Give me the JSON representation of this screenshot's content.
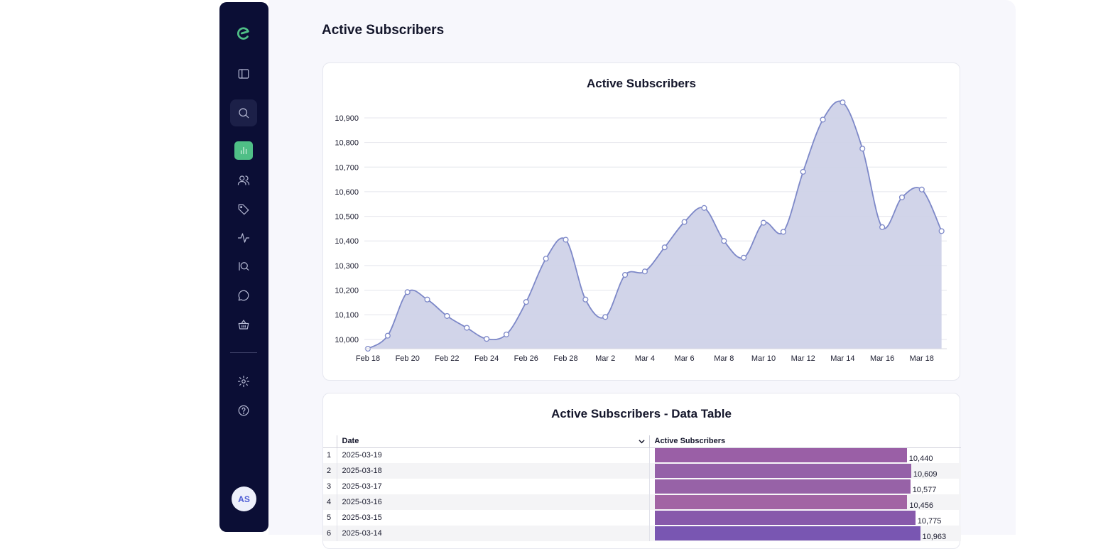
{
  "page": {
    "title": "Active Subscribers"
  },
  "sidebar": {
    "items": [
      {
        "id": "logo",
        "icon": "logo-icon"
      },
      {
        "id": "toggle",
        "icon": "sidebar-toggle-icon"
      },
      {
        "id": "search",
        "icon": "search-icon"
      },
      {
        "id": "analytics",
        "icon": "bar-chart-icon",
        "active": true
      },
      {
        "id": "users",
        "icon": "users-icon"
      },
      {
        "id": "tags",
        "icon": "tag-icon"
      },
      {
        "id": "activity",
        "icon": "activity-icon"
      },
      {
        "id": "insights",
        "icon": "iq-search-icon"
      },
      {
        "id": "chat",
        "icon": "chat-icon"
      },
      {
        "id": "shop",
        "icon": "basket-icon"
      },
      {
        "id": "settings",
        "icon": "gear-icon"
      },
      {
        "id": "help",
        "icon": "help-icon"
      }
    ],
    "avatar": "AS"
  },
  "colors": {
    "sidebar": "#0b0e35",
    "accent": "#4fbf86",
    "line": "#7d88c8",
    "area": "#cfd2e8"
  },
  "chart_data": {
    "type": "area",
    "title": "Active Subscribers",
    "x": [
      "2025-02-18",
      "2025-02-19",
      "2025-02-20",
      "2025-02-21",
      "2025-02-22",
      "2025-02-23",
      "2025-02-24",
      "2025-02-25",
      "2025-02-26",
      "2025-02-27",
      "2025-02-28",
      "2025-03-01",
      "2025-03-02",
      "2025-03-03",
      "2025-03-04",
      "2025-03-05",
      "2025-03-06",
      "2025-03-07",
      "2025-03-08",
      "2025-03-09",
      "2025-03-10",
      "2025-03-11",
      "2025-03-12",
      "2025-03-13",
      "2025-03-14",
      "2025-03-15",
      "2025-03-16",
      "2025-03-17",
      "2025-03-18",
      "2025-03-19"
    ],
    "series": [
      {
        "values": [
          9962,
          10015,
          10192,
          10162,
          10095,
          10047,
          10002,
          10020,
          10152,
          10328,
          10405,
          10162,
          10091,
          10262,
          10276,
          10374,
          10477,
          10534,
          10400,
          10332,
          10474,
          10437,
          10681,
          10893,
          10963,
          10775,
          10456,
          10577,
          10609,
          10440
        ]
      }
    ],
    "xticks": [
      "Feb 18",
      "Feb 20",
      "Feb 22",
      "Feb 24",
      "Feb 26",
      "Feb 28",
      "Mar 2",
      "Mar 4",
      "Mar 6",
      "Mar 8",
      "Mar 10",
      "Mar 12",
      "Mar 14",
      "Mar 16",
      "Mar 18"
    ],
    "yticks": [
      "10,000",
      "10,100",
      "10,200",
      "10,300",
      "10,400",
      "10,500",
      "10,600",
      "10,700",
      "10,800",
      "10,900"
    ],
    "ylim": [
      9962,
      10963
    ],
    "grid": true,
    "legend": "none"
  },
  "table": {
    "title": "Active Subscribers - Data Table",
    "columns": [
      "Date",
      "Active Subscribers"
    ],
    "rows": [
      {
        "n": "1",
        "date": "2025-03-19",
        "value": 10440,
        "label": "10,440",
        "color": "#9a5fa6"
      },
      {
        "n": "2",
        "date": "2025-03-18",
        "value": 10609,
        "label": "10,609",
        "color": "#9561a8"
      },
      {
        "n": "3",
        "date": "2025-03-17",
        "value": 10577,
        "label": "10,577",
        "color": "#9762a7"
      },
      {
        "n": "4",
        "date": "2025-03-16",
        "value": 10456,
        "label": "10,456",
        "color": "#a264a4"
      },
      {
        "n": "5",
        "date": "2025-03-15",
        "value": 10775,
        "label": "10,775",
        "color": "#8759ab"
      },
      {
        "n": "6",
        "date": "2025-03-14",
        "value": 10963,
        "label": "10,963",
        "color": "#7956b2"
      }
    ],
    "bar_max": 10963
  }
}
